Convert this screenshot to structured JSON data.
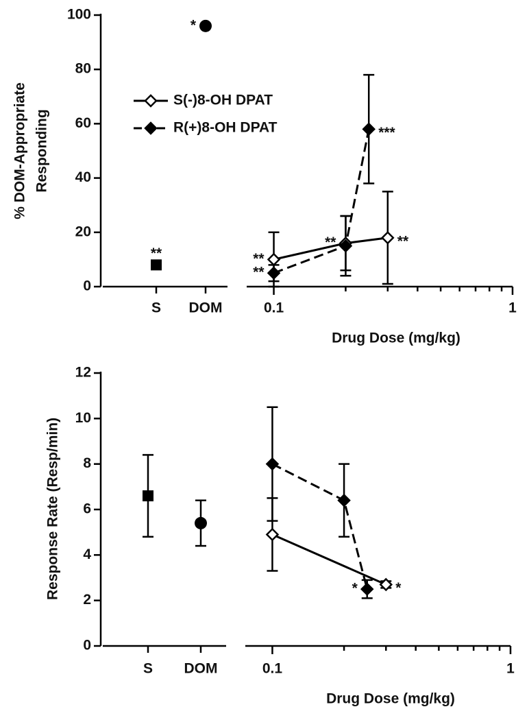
{
  "chart_data": [
    {
      "type": "line",
      "ylabel": [
        "% DOM-Appropriate",
        "Responding"
      ],
      "xlabel": "Drug Dose (mg/kg)",
      "ylim": [
        0,
        100
      ],
      "yticks": [
        0,
        20,
        40,
        60,
        80,
        100
      ],
      "log_x": true,
      "xlim": [
        0.077,
        1
      ],
      "xticks": [
        0.1,
        1
      ],
      "minor_xticks": [
        0.2,
        0.3,
        0.4,
        0.5,
        0.6,
        0.7,
        0.8,
        0.9
      ],
      "legend": "upper left",
      "controls": {
        "categories": [
          "S",
          "DOM"
        ],
        "values": [
          8,
          96
        ],
        "markers": [
          "square",
          "circle"
        ],
        "annotations": [
          "**",
          "*"
        ]
      },
      "series": [
        {
          "name": "S(-)8-OH DPAT",
          "color": "#000000",
          "marker": "open-diamond",
          "dashed": false,
          "x": [
            0.1,
            0.2,
            0.3
          ],
          "values": [
            10,
            16,
            18
          ],
          "errors": [
            10,
            10,
            17
          ],
          "annotations": [
            "**",
            "**",
            "**"
          ]
        },
        {
          "name": "R(+)8-OH DPAT",
          "color": "#000000",
          "marker": "filled-diamond",
          "dashed": true,
          "x": [
            0.1,
            0.2,
            0.25
          ],
          "values": [
            5,
            15,
            58
          ],
          "errors": [
            3,
            11,
            20
          ],
          "annotations": [
            "**",
            null,
            "***"
          ]
        }
      ]
    },
    {
      "type": "line",
      "ylabel": [
        "Response Rate (Resp/min)"
      ],
      "xlabel": "Drug Dose (mg/kg)",
      "ylim": [
        0,
        12
      ],
      "yticks": [
        0,
        2,
        4,
        6,
        8,
        10,
        12
      ],
      "log_x": true,
      "xlim": [
        0.077,
        1
      ],
      "xticks": [
        0.1,
        1
      ],
      "minor_xticks": [
        0.2,
        0.3,
        0.4,
        0.5,
        0.6,
        0.7,
        0.8,
        0.9
      ],
      "controls": {
        "categories": [
          "S",
          "DOM"
        ],
        "values": [
          6.6,
          5.4
        ],
        "errors": [
          1.8,
          1.0
        ],
        "markers": [
          "square",
          "circle"
        ]
      },
      "series": [
        {
          "color": "#000000",
          "marker": "open-diamond",
          "dashed": false,
          "x": [
            0.1,
            0.3
          ],
          "values": [
            4.9,
            2.7
          ],
          "errors": [
            1.6,
            0.15
          ],
          "annotations": [
            null,
            "*"
          ]
        },
        {
          "color": "#000000",
          "marker": "filled-diamond",
          "dashed": true,
          "x": [
            0.1,
            0.2,
            0.25
          ],
          "values": [
            8.0,
            6.4,
            2.5
          ],
          "errors": [
            2.5,
            1.6,
            0.4
          ],
          "annotations": [
            null,
            null,
            "*"
          ]
        }
      ]
    }
  ]
}
